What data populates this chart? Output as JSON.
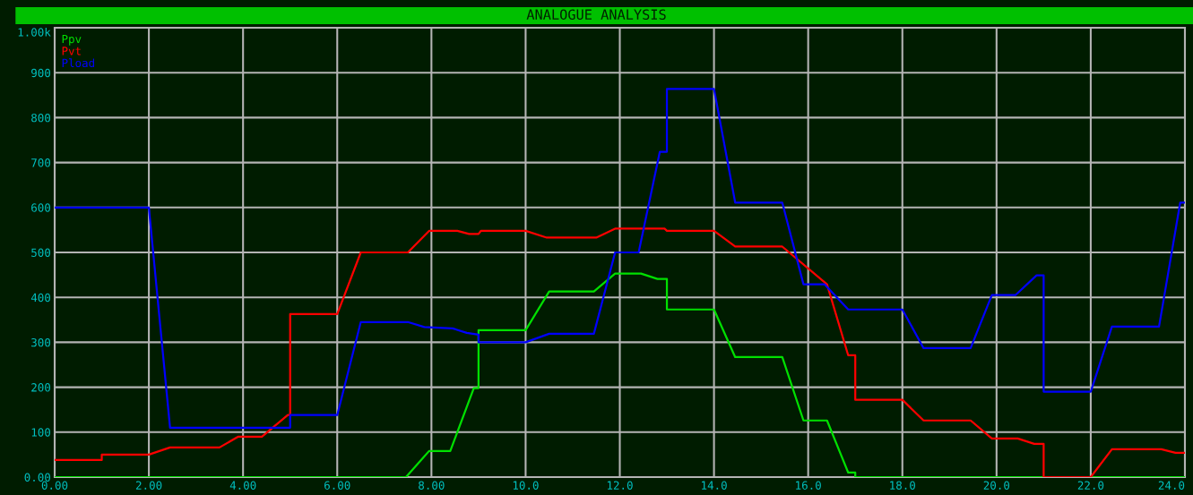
{
  "chart_data": {
    "type": "line",
    "title": "ANALOGUE ANALYSIS",
    "xlim": [
      0,
      24
    ],
    "xticks": [
      {
        "value": 0,
        "label": "0.00"
      },
      {
        "value": 2,
        "label": "2.00"
      },
      {
        "value": 4,
        "label": "4.00"
      },
      {
        "value": 6,
        "label": "6.00"
      },
      {
        "value": 8,
        "label": "8.00"
      },
      {
        "value": 10,
        "label": "10.0"
      },
      {
        "value": 12,
        "label": "12.0"
      },
      {
        "value": 14,
        "label": "14.0"
      },
      {
        "value": 16,
        "label": "16.0"
      },
      {
        "value": 18,
        "label": "18.0"
      },
      {
        "value": 20,
        "label": "20.0"
      },
      {
        "value": 22,
        "label": "22.0"
      },
      {
        "value": 24,
        "label": "24.0"
      }
    ],
    "ylim": [
      0,
      1000
    ],
    "yticks": [
      {
        "value": 0,
        "label": "0.00"
      },
      100,
      200,
      300,
      400,
      500,
      600,
      700,
      800,
      900,
      {
        "value": 1000,
        "label": "1.00k"
      }
    ],
    "grid": true,
    "legend": "top left",
    "marker": "none",
    "line_style": "solid",
    "series": [
      {
        "name": "Ppv",
        "color": "#00e000",
        "x": [
          0,
          7.46,
          7.95,
          8.4,
          8.9,
          9.0,
          9.0,
          10.0,
          10.5,
          11.45,
          11.9,
          12.45,
          12.8,
          13.0,
          13.0,
          14.0,
          14.45,
          15.45,
          15.9,
          16.4,
          16.85,
          17.0,
          17.0,
          24
        ],
        "values": [
          0,
          0,
          58,
          58,
          198,
          198,
          327,
          327,
          413,
          413,
          453,
          453,
          441,
          441,
          373,
          373,
          267,
          267,
          126,
          126,
          10,
          10,
          0,
          0
        ]
      },
      {
        "name": "Pvt",
        "color": "#ff0000",
        "x": [
          0,
          1.0,
          1.0,
          2.0,
          2.45,
          3.5,
          3.9,
          4.4,
          4.95,
          5.0,
          5.0,
          6.0,
          6.5,
          7.5,
          7.95,
          8.55,
          8.8,
          9.0,
          9.05,
          10.0,
          10.45,
          11.5,
          11.9,
          12.95,
          13.0,
          14.0,
          14.45,
          15.45,
          16.4,
          16.85,
          17.0,
          17.0,
          18.0,
          18.45,
          19.45,
          19.9,
          20.45,
          20.8,
          21.0,
          21.0,
          22.0,
          22.45,
          23.5,
          23.8,
          24
        ],
        "values": [
          38,
          38,
          50,
          50,
          66,
          66,
          90,
          90,
          138,
          138,
          363,
          363,
          500,
          500,
          548,
          548,
          541,
          541,
          548,
          548,
          533,
          533,
          553,
          553,
          548,
          548,
          513,
          513,
          429,
          271,
          271,
          172,
          172,
          126,
          126,
          86,
          86,
          74,
          74,
          0,
          0,
          62,
          62,
          54,
          54
        ]
      },
      {
        "name": "Pload",
        "color": "#0000ff",
        "x": [
          0,
          2.0,
          2.45,
          5.0,
          5.0,
          6.0,
          6.5,
          7.5,
          7.85,
          8.45,
          8.75,
          9.0,
          9.0,
          10.0,
          10.5,
          11.45,
          11.9,
          12.4,
          12.85,
          13.0,
          13.0,
          14.0,
          14.45,
          15.45,
          15.9,
          16.35,
          16.85,
          18.0,
          18.45,
          19.45,
          19.9,
          20.4,
          20.85,
          21.0,
          21.0,
          22.0,
          22.45,
          23.45,
          23.9,
          24
        ],
        "values": [
          600,
          600,
          110,
          110,
          138,
          138,
          345,
          345,
          334,
          331,
          321,
          317,
          300,
          300,
          319,
          319,
          500,
          500,
          724,
          724,
          864,
          864,
          611,
          611,
          429,
          429,
          373,
          373,
          287,
          287,
          405,
          405,
          449,
          449,
          190,
          190,
          335,
          335,
          611,
          611
        ]
      }
    ]
  }
}
